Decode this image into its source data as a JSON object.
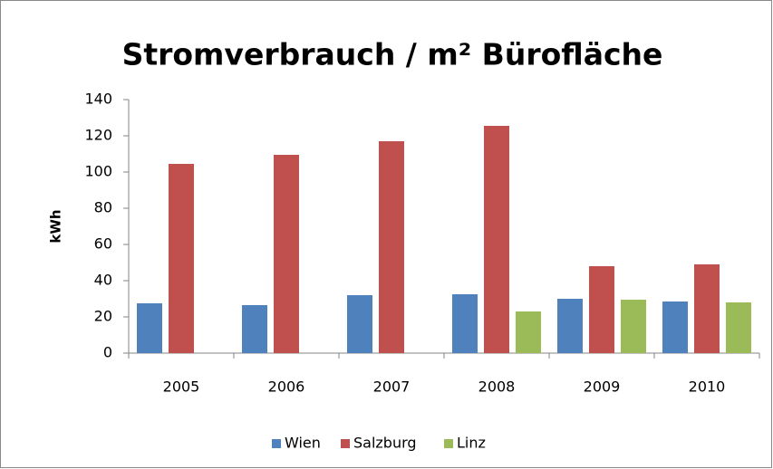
{
  "chart_data": {
    "type": "bar",
    "title": "Stromverbrauch / m² Bürofläche",
    "y_label": "kWh",
    "categories": [
      "2005",
      "2006",
      "2007",
      "2008",
      "2009",
      "2010"
    ],
    "series": [
      {
        "name": "Wien",
        "color": "#4f81bd",
        "values": [
          27.5,
          26.5,
          32,
          32.5,
          30,
          28.5
        ]
      },
      {
        "name": "Salzburg",
        "color": "#c0504d",
        "values": [
          104.5,
          109.5,
          117,
          125.5,
          48,
          49
        ]
      },
      {
        "name": "Linz",
        "color": "#9bbb59",
        "values": [
          null,
          null,
          null,
          23,
          29.5,
          28
        ]
      }
    ],
    "ylim": [
      0,
      140
    ],
    "yticks": [
      0,
      20,
      40,
      60,
      80,
      100,
      120,
      140
    ],
    "grid": false,
    "legend": "bottom"
  }
}
